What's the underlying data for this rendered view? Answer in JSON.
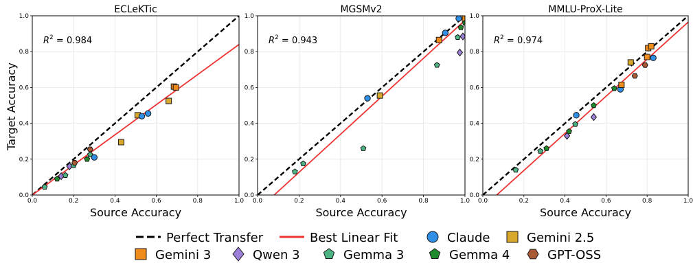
{
  "figure": {
    "ylabel": "Target  Accuracy",
    "xlabel": "Source Accuracy"
  },
  "legend": {
    "placement": "bottom",
    "items": [
      {
        "label": "Perfect Transfer",
        "kind": "dashed",
        "color": "#000000"
      },
      {
        "label": "Best Linear Fit",
        "kind": "line",
        "color": "#ee3333"
      },
      {
        "label": "Claude",
        "kind": "circle",
        "color": "#2f8ee6"
      },
      {
        "label": "Gemini 2.5",
        "kind": "square",
        "color": "#d7a82c"
      },
      {
        "label": "Gemini 3",
        "kind": "square",
        "color": "#f08c1c"
      },
      {
        "label": "Qwen 3",
        "kind": "diamond",
        "color": "#9b7fd8"
      },
      {
        "label": "Gemma 3",
        "kind": "pentagon",
        "color": "#4db383"
      },
      {
        "label": "Gemma 4",
        "kind": "pentagon",
        "color": "#1f8a2b"
      },
      {
        "label": "GPT-OSS",
        "kind": "hexagon",
        "color": "#a95a35"
      }
    ]
  },
  "chart_data": [
    {
      "type": "scatter",
      "title": "ECLeKTic",
      "r2": "= 0.984",
      "xlim": [
        0,
        1
      ],
      "ylim": [
        0,
        1
      ],
      "grid": true,
      "fit": {
        "slope": 0.84,
        "intercept": 0.0
      },
      "points": [
        {
          "model": "Gemma 3",
          "x": 0.06,
          "y": 0.045
        },
        {
          "model": "Gemma 4",
          "x": 0.12,
          "y": 0.09
        },
        {
          "model": "Qwen 3",
          "x": 0.14,
          "y": 0.105
        },
        {
          "model": "Gemma 3",
          "x": 0.16,
          "y": 0.11
        },
        {
          "model": "Qwen 3",
          "x": 0.18,
          "y": 0.16
        },
        {
          "model": "Gemma 3",
          "x": 0.2,
          "y": 0.165
        },
        {
          "model": "GPT-OSS",
          "x": 0.205,
          "y": 0.18
        },
        {
          "model": "Gemma 4",
          "x": 0.265,
          "y": 0.2
        },
        {
          "model": "Gemma 3",
          "x": 0.28,
          "y": 0.225
        },
        {
          "model": "GPT-OSS",
          "x": 0.28,
          "y": 0.255
        },
        {
          "model": "Claude",
          "x": 0.3,
          "y": 0.21
        },
        {
          "model": "Gemini 2.5",
          "x": 0.43,
          "y": 0.295
        },
        {
          "model": "Gemini 2.5",
          "x": 0.51,
          "y": 0.445
        },
        {
          "model": "Claude",
          "x": 0.53,
          "y": 0.44
        },
        {
          "model": "Claude",
          "x": 0.56,
          "y": 0.455
        },
        {
          "model": "Gemini 2.5",
          "x": 0.66,
          "y": 0.525
        },
        {
          "model": "Gemini 3",
          "x": 0.685,
          "y": 0.605
        },
        {
          "model": "Gemini 3",
          "x": 0.695,
          "y": 0.6
        }
      ]
    },
    {
      "type": "scatter",
      "title": "MGSMv2",
      "r2": "= 0.943",
      "xlim": [
        0,
        1
      ],
      "ylim": [
        0,
        1
      ],
      "grid": true,
      "fit": {
        "slope": 1.06,
        "intercept": -0.085
      },
      "points": [
        {
          "model": "Gemma 3",
          "x": 0.18,
          "y": 0.13
        },
        {
          "model": "Gemma 3",
          "x": 0.22,
          "y": 0.175
        },
        {
          "model": "Gemma 3",
          "x": 0.51,
          "y": 0.26
        },
        {
          "model": "Claude",
          "x": 0.53,
          "y": 0.54
        },
        {
          "model": "Gemini 2.5",
          "x": 0.59,
          "y": 0.555
        },
        {
          "model": "Gemma 3",
          "x": 0.865,
          "y": 0.725
        },
        {
          "model": "Gemini 3",
          "x": 0.875,
          "y": 0.865
        },
        {
          "model": "Claude",
          "x": 0.905,
          "y": 0.905
        },
        {
          "model": "Gemma 3",
          "x": 0.965,
          "y": 0.88
        },
        {
          "model": "Gemma 4",
          "x": 0.98,
          "y": 0.935
        },
        {
          "model": "Claude",
          "x": 0.97,
          "y": 0.985
        },
        {
          "model": "Qwen 3",
          "x": 0.975,
          "y": 0.795
        },
        {
          "model": "Qwen 3",
          "x": 0.99,
          "y": 0.885
        },
        {
          "model": "Gemini 3",
          "x": 1.0,
          "y": 0.985
        },
        {
          "model": "Gemma 4",
          "x": 1.0,
          "y": 0.96
        }
      ]
    },
    {
      "type": "scatter",
      "title": "MMLU-ProX-Lite",
      "r2": "= 0.974",
      "xlim": [
        0,
        1
      ],
      "ylim": [
        0,
        1
      ],
      "grid": true,
      "fit": {
        "slope": 1.035,
        "intercept": -0.07
      },
      "points": [
        {
          "model": "Gemma 3",
          "x": 0.16,
          "y": 0.14
        },
        {
          "model": "Gemma 3",
          "x": 0.28,
          "y": 0.245
        },
        {
          "model": "Gemma 4",
          "x": 0.31,
          "y": 0.26
        },
        {
          "model": "Qwen 3",
          "x": 0.41,
          "y": 0.33
        },
        {
          "model": "Gemma 4",
          "x": 0.42,
          "y": 0.355
        },
        {
          "model": "Gemma 3",
          "x": 0.45,
          "y": 0.395
        },
        {
          "model": "Claude",
          "x": 0.455,
          "y": 0.445
        },
        {
          "model": "Qwen 3",
          "x": 0.54,
          "y": 0.435
        },
        {
          "model": "Gemma 4",
          "x": 0.54,
          "y": 0.5
        },
        {
          "model": "Gemma 4",
          "x": 0.64,
          "y": 0.595
        },
        {
          "model": "Claude",
          "x": 0.67,
          "y": 0.59
        },
        {
          "model": "Gemini 3",
          "x": 0.675,
          "y": 0.615
        },
        {
          "model": "Gemini 2.5",
          "x": 0.72,
          "y": 0.74
        },
        {
          "model": "GPT-OSS",
          "x": 0.74,
          "y": 0.665
        },
        {
          "model": "GPT-OSS",
          "x": 0.79,
          "y": 0.725
        },
        {
          "model": "Gemini 3",
          "x": 0.8,
          "y": 0.77
        },
        {
          "model": "Gemini 3",
          "x": 0.805,
          "y": 0.82
        },
        {
          "model": "Gemini 3",
          "x": 0.82,
          "y": 0.83
        },
        {
          "model": "Claude",
          "x": 0.83,
          "y": 0.765
        }
      ]
    }
  ]
}
